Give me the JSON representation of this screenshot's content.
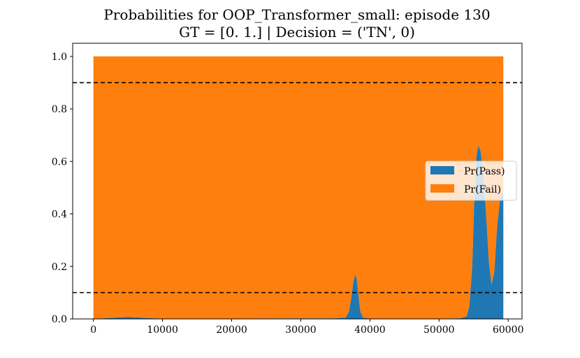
{
  "chart_data": {
    "type": "area",
    "title": "Probabilities for OOP_Transformer_small: episode 130",
    "subtitle": "GT = [0. 1.] | Decision = ('TN', 0)",
    "xlabel": "",
    "ylabel": "",
    "xlim": [
      -3000,
      62000
    ],
    "ylim": [
      0,
      1.05
    ],
    "x_ticks": [
      0,
      10000,
      20000,
      30000,
      40000,
      50000,
      60000
    ],
    "x_tick_labels": [
      "0",
      "10000",
      "20000",
      "30000",
      "40000",
      "50000",
      "60000"
    ],
    "y_ticks": [
      0.0,
      0.2,
      0.4,
      0.6,
      0.8,
      1.0
    ],
    "y_tick_labels": [
      "0.0",
      "0.2",
      "0.4",
      "0.6",
      "0.8",
      "1.0"
    ],
    "thresholds": [
      0.9,
      0.1
    ],
    "grid": false,
    "legend_position": "center-right",
    "stacked": true,
    "x_max": 59300,
    "series": [
      {
        "name": "Pr(Pass)",
        "color": "#1f77b4",
        "points": [
          [
            0,
            0.0
          ],
          [
            2000,
            0.003
          ],
          [
            4000,
            0.006
          ],
          [
            5000,
            0.007
          ],
          [
            6000,
            0.006
          ],
          [
            8000,
            0.003
          ],
          [
            10000,
            0.001
          ],
          [
            20000,
            0.001
          ],
          [
            30000,
            0.002
          ],
          [
            35000,
            0.002
          ],
          [
            36500,
            0.005
          ],
          [
            37000,
            0.03
          ],
          [
            37300,
            0.08
          ],
          [
            37600,
            0.14
          ],
          [
            37900,
            0.17
          ],
          [
            38100,
            0.15
          ],
          [
            38300,
            0.1
          ],
          [
            38600,
            0.03
          ],
          [
            39000,
            0.005
          ],
          [
            40000,
            0.001
          ],
          [
            50000,
            0.001
          ],
          [
            53000,
            0.002
          ],
          [
            54000,
            0.01
          ],
          [
            54400,
            0.05
          ],
          [
            54800,
            0.2
          ],
          [
            55100,
            0.45
          ],
          [
            55400,
            0.62
          ],
          [
            55700,
            0.66
          ],
          [
            56000,
            0.64
          ],
          [
            56400,
            0.55
          ],
          [
            56800,
            0.4
          ],
          [
            57200,
            0.22
          ],
          [
            57600,
            0.13
          ],
          [
            58000,
            0.18
          ],
          [
            58400,
            0.35
          ],
          [
            58800,
            0.45
          ],
          [
            59100,
            0.48
          ],
          [
            59300,
            0.48
          ]
        ]
      },
      {
        "name": "Pr(Fail)",
        "color": "#ff7f0e",
        "note_complement": true
      }
    ]
  }
}
